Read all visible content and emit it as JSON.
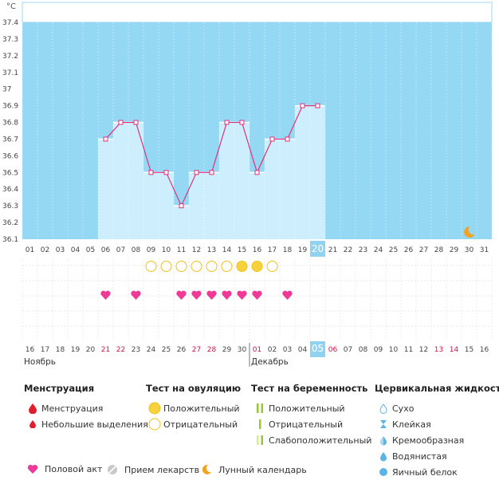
{
  "chart_data": {
    "type": "line",
    "unit_label": "°C",
    "y_ticks": [
      "36.1",
      "36.2",
      "36.3",
      "36.4",
      "36.5",
      "36.6",
      "36.7",
      "36.8",
      "36.9",
      "37",
      "37.1",
      "37.2",
      "37.3",
      "37.4"
    ],
    "ylim": [
      36.1,
      37.4
    ],
    "x_top": [
      "01",
      "02",
      "03",
      "04",
      "05",
      "06",
      "07",
      "08",
      "09",
      "10",
      "11",
      "12",
      "13",
      "14",
      "15",
      "16",
      "17",
      "18",
      "19",
      "20",
      "21",
      "22",
      "23",
      "24",
      "25",
      "26",
      "27",
      "28",
      "29",
      "30",
      "31"
    ],
    "temperatures": [
      null,
      null,
      null,
      null,
      null,
      36.7,
      36.8,
      36.8,
      36.5,
      36.5,
      36.3,
      36.5,
      36.5,
      36.8,
      36.8,
      36.5,
      36.7,
      36.7,
      36.9,
      36.9,
      null,
      null,
      null,
      null,
      null,
      null,
      null,
      null,
      null,
      null,
      null
    ],
    "highlight_day": "20",
    "ovulation_tests": [
      null,
      null,
      null,
      null,
      null,
      null,
      null,
      null,
      "negative",
      "negative",
      "negative",
      "negative",
      "negative",
      "negative",
      "positive",
      "positive",
      "negative",
      null,
      null,
      null,
      null,
      null,
      null,
      null,
      null,
      null,
      null,
      null,
      null,
      null,
      null
    ],
    "intercourse_days": [
      "06",
      "08",
      "11",
      "12",
      "13",
      "14",
      "15",
      "16",
      "18"
    ],
    "moon_day": "30",
    "x_bottom": [
      "16",
      "17",
      "18",
      "19",
      "20",
      "21",
      "22",
      "23",
      "24",
      "25",
      "26",
      "27",
      "28",
      "29",
      "30",
      "01",
      "02",
      "03",
      "04",
      "05",
      "06",
      "07",
      "08",
      "09",
      "10",
      "11",
      "12",
      "13",
      "14",
      "15",
      "16"
    ],
    "x_bottom_red": [
      5,
      6,
      11,
      12,
      15,
      20,
      27,
      28
    ],
    "month_labels": [
      {
        "label": "Ноябрь",
        "start": 0
      },
      {
        "label": "Декабрь",
        "start": 15
      }
    ],
    "highlight_bottom": "05",
    "colors": {
      "plot_bg": "#94d8f4",
      "bar": "#cdeefd",
      "line": "#e0317a",
      "highlight": "#90d3f0",
      "ovul": "#f7d23c",
      "heart": "#ee3a96"
    }
  },
  "legend": {
    "menstruation": {
      "title": "Менструация",
      "items": [
        "Менструация",
        "Небольшие выделения"
      ]
    },
    "ovulation_test": {
      "title": "Тест на овуляцию",
      "items": [
        "Положительный",
        "Отрицательный"
      ]
    },
    "pregnancy_test": {
      "title": "Тест на беременность",
      "items": [
        "Положительный",
        "Отрицательный",
        "Слабоположительный"
      ]
    },
    "cervical": {
      "title": "Цервикальная жидкость",
      "items": [
        "Сухо",
        "Клейкая",
        "Кремообразная",
        "Водянистая",
        "Яичный белок"
      ]
    },
    "bottom": [
      "Половой акт",
      "Прием лекарств",
      "Лунный календарь"
    ]
  }
}
